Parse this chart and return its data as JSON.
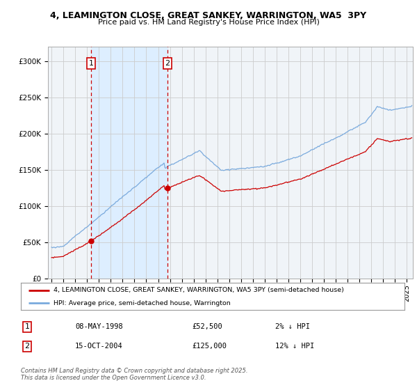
{
  "title1": "4, LEAMINGTON CLOSE, GREAT SANKEY, WARRINGTON, WA5  3PY",
  "title2": "Price paid vs. HM Land Registry's House Price Index (HPI)",
  "sale1_date": "08-MAY-1998",
  "sale1_price": 52500,
  "sale2_date": "15-OCT-2004",
  "sale2_price": 125000,
  "sale1_hpi_diff": "2% ↓ HPI",
  "sale2_hpi_diff": "12% ↓ HPI",
  "legend1": "4, LEAMINGTON CLOSE, GREAT SANKEY, WARRINGTON, WA5 3PY (semi-detached house)",
  "legend2": "HPI: Average price, semi-detached house, Warrington",
  "footnote": "Contains HM Land Registry data © Crown copyright and database right 2025.\nThis data is licensed under the Open Government Licence v3.0.",
  "ylim": [
    0,
    320000
  ],
  "yticks": [
    0,
    50000,
    100000,
    150000,
    200000,
    250000,
    300000
  ],
  "sale1_x": 1998.35,
  "sale2_x": 2004.79,
  "line_color_red": "#cc0000",
  "line_color_blue": "#7aaadd",
  "vline_color": "#cc0000",
  "shade_color": "#ddeeff",
  "bg_color": "#f0f4f8",
  "grid_color": "#cccccc"
}
